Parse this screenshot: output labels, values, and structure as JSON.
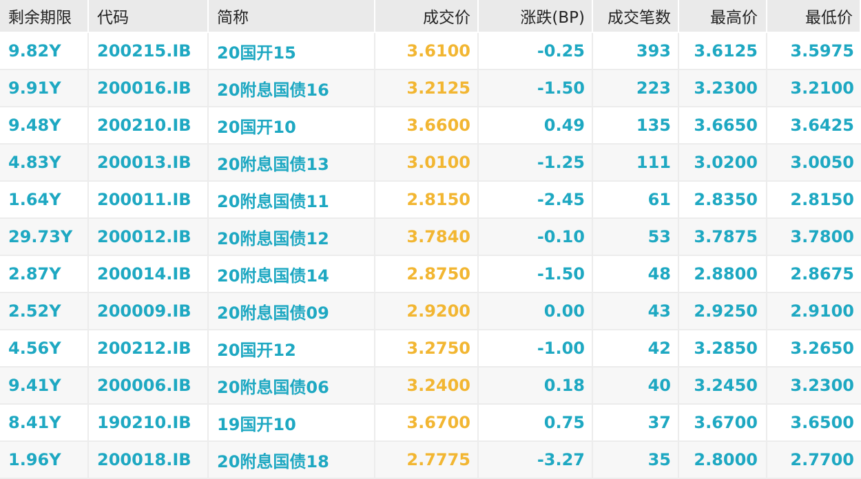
{
  "colors": {
    "teal": "#1ea8c2",
    "orange": "#f2b632",
    "header_bg": "#eaeaea",
    "row_alt_bg": "#f7f7f7"
  },
  "headers": {
    "remaining_term": "剩余期限",
    "code": "代码",
    "short_name": "简称",
    "trade_price": "成交价",
    "change_bp": "涨跌(BP)",
    "trade_count": "成交笔数",
    "high": "最高价",
    "low": "最低价"
  },
  "rows": [
    {
      "remaining_term": "9.82Y",
      "code": "200215.IB",
      "short_name": "20国开15",
      "trade_price": "3.6100",
      "change_bp": "-0.25",
      "trade_count": "393",
      "high": "3.6125",
      "low": "3.5975"
    },
    {
      "remaining_term": "9.91Y",
      "code": "200016.IB",
      "short_name": "20附息国债16",
      "trade_price": "3.2125",
      "change_bp": "-1.50",
      "trade_count": "223",
      "high": "3.2300",
      "low": "3.2100"
    },
    {
      "remaining_term": "9.48Y",
      "code": "200210.IB",
      "short_name": "20国开10",
      "trade_price": "3.6600",
      "change_bp": "0.49",
      "trade_count": "135",
      "high": "3.6650",
      "low": "3.6425"
    },
    {
      "remaining_term": "4.83Y",
      "code": "200013.IB",
      "short_name": "20附息国债13",
      "trade_price": "3.0100",
      "change_bp": "-1.25",
      "trade_count": "111",
      "high": "3.0200",
      "low": "3.0050"
    },
    {
      "remaining_term": "1.64Y",
      "code": "200011.IB",
      "short_name": "20附息国债11",
      "trade_price": "2.8150",
      "change_bp": "-2.45",
      "trade_count": "61",
      "high": "2.8350",
      "low": "2.8150"
    },
    {
      "remaining_term": "29.73Y",
      "code": "200012.IB",
      "short_name": "20附息国债12",
      "trade_price": "3.7840",
      "change_bp": "-0.10",
      "trade_count": "53",
      "high": "3.7875",
      "low": "3.7800"
    },
    {
      "remaining_term": "2.87Y",
      "code": "200014.IB",
      "short_name": "20附息国债14",
      "trade_price": "2.8750",
      "change_bp": "-1.50",
      "trade_count": "48",
      "high": "2.8800",
      "low": "2.8675"
    },
    {
      "remaining_term": "2.52Y",
      "code": "200009.IB",
      "short_name": "20附息国债09",
      "trade_price": "2.9200",
      "change_bp": "0.00",
      "trade_count": "43",
      "high": "2.9250",
      "low": "2.9100"
    },
    {
      "remaining_term": "4.56Y",
      "code": "200212.IB",
      "short_name": "20国开12",
      "trade_price": "3.2750",
      "change_bp": "-1.00",
      "trade_count": "42",
      "high": "3.2850",
      "low": "3.2650"
    },
    {
      "remaining_term": "9.41Y",
      "code": "200006.IB",
      "short_name": "20附息国债06",
      "trade_price": "3.2400",
      "change_bp": "0.18",
      "trade_count": "40",
      "high": "3.2450",
      "low": "3.2300"
    },
    {
      "remaining_term": "8.41Y",
      "code": "190210.IB",
      "short_name": "19国开10",
      "trade_price": "3.6700",
      "change_bp": "0.75",
      "trade_count": "37",
      "high": "3.6700",
      "low": "3.6500"
    },
    {
      "remaining_term": "1.96Y",
      "code": "200018.IB",
      "short_name": "20附息国债18",
      "trade_price": "2.7775",
      "change_bp": "-3.27",
      "trade_count": "35",
      "high": "2.8000",
      "low": "2.7700"
    }
  ]
}
